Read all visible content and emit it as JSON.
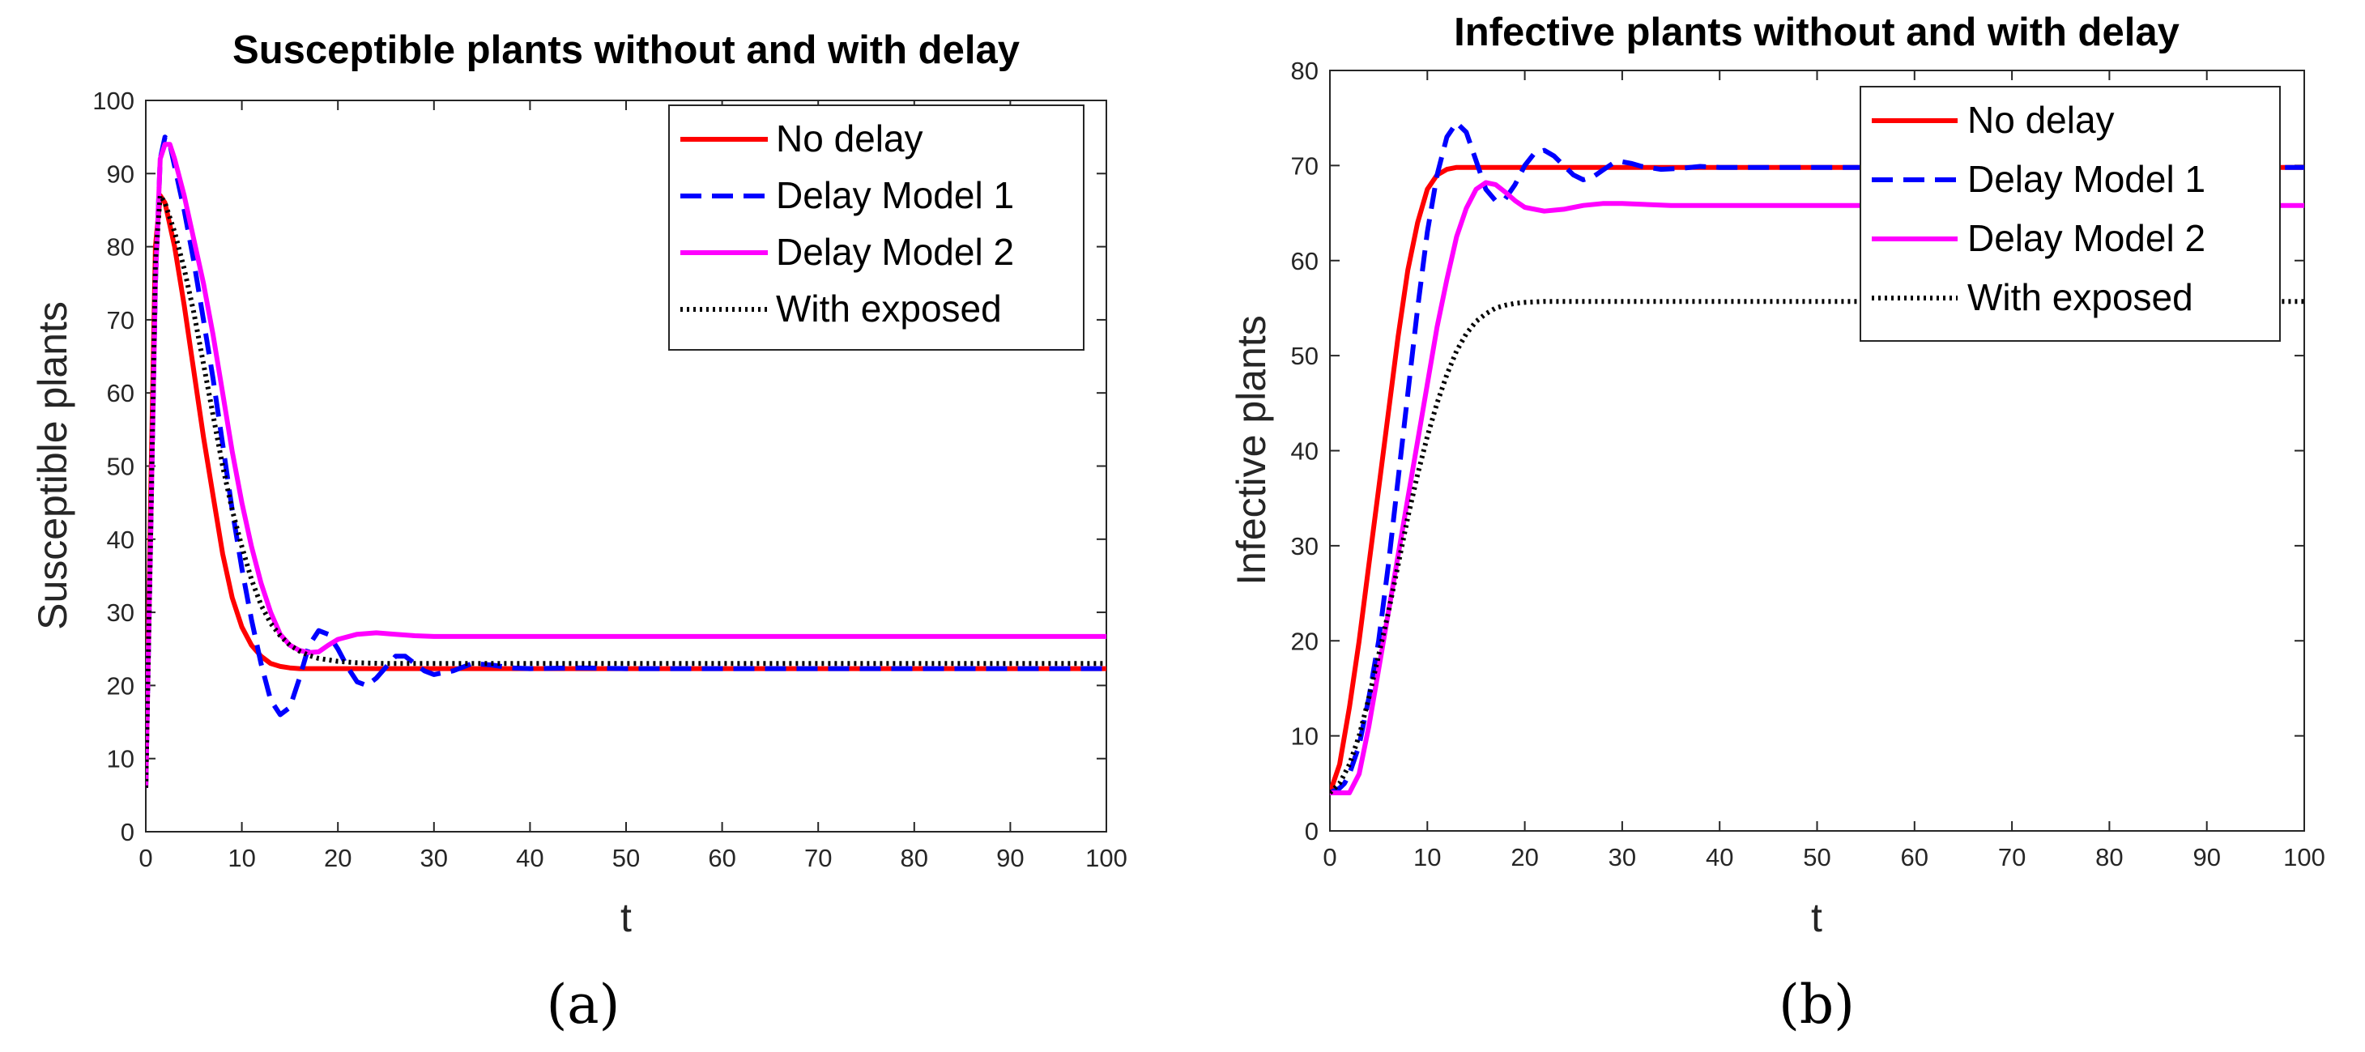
{
  "colors": {
    "no_delay": "#ff0000",
    "delay_model_1": "#0000ff",
    "delay_model_2": "#ff00ff",
    "with_exposed": "#000000",
    "axis": "#262626",
    "text": "#000000"
  },
  "chart_data": [
    {
      "type": "line",
      "panel_label": "(a)",
      "title": "Susceptible plants without and with delay",
      "xlabel": "t",
      "ylabel": "Susceptible plants",
      "xlim": [
        0,
        100
      ],
      "ylim": [
        0,
        100
      ],
      "xticks": [
        0,
        10,
        20,
        30,
        40,
        50,
        60,
        70,
        80,
        90,
        100
      ],
      "yticks": [
        0,
        10,
        20,
        30,
        40,
        50,
        60,
        70,
        80,
        90,
        100
      ],
      "legend_position": "top-right",
      "series": [
        {
          "name": "No delay",
          "style": "solid",
          "color": "#ff0000",
          "x": [
            0,
            0.5,
            1,
            1.5,
            2,
            3,
            4,
            5,
            6,
            7,
            8,
            9,
            10,
            11,
            12,
            13,
            14,
            15,
            16,
            18,
            20,
            25,
            30,
            40,
            50,
            60,
            70,
            80,
            90,
            100
          ],
          "y": [
            6,
            45,
            80,
            87,
            86,
            80,
            72,
            63,
            54,
            46,
            38,
            32,
            28,
            25.5,
            24,
            23,
            22.6,
            22.4,
            22.3,
            22.3,
            22.3,
            22.3,
            22.3,
            22.3,
            22.3,
            22.3,
            22.3,
            22.3,
            22.3,
            22.3
          ]
        },
        {
          "name": "Delay Model 1",
          "style": "dashed",
          "color": "#0000ff",
          "x": [
            0,
            0.5,
            1,
            1.5,
            2,
            2.5,
            3,
            4,
            5,
            6,
            7,
            8,
            9,
            10,
            11,
            12,
            13,
            14,
            15,
            16,
            17,
            18,
            19,
            20,
            21,
            22,
            23,
            24,
            25,
            26,
            27,
            28,
            29,
            30,
            32,
            34,
            36,
            38,
            40,
            45,
            50,
            60,
            70,
            80,
            90,
            100
          ],
          "y": [
            6,
            40,
            75,
            92,
            95,
            94,
            91,
            85,
            78,
            70,
            62,
            53,
            44,
            36,
            29,
            23,
            18,
            16,
            17,
            21,
            25.5,
            27.5,
            27,
            25,
            22.5,
            20.5,
            20,
            21,
            22.5,
            24,
            24,
            23,
            22,
            21.5,
            22,
            23,
            22.8,
            22.4,
            22.3,
            22.4,
            22.3,
            22.3,
            22.3,
            22.3,
            22.3,
            22.3
          ]
        },
        {
          "name": "Delay Model 2",
          "style": "solid",
          "color": "#ff00ff",
          "x": [
            0,
            0.5,
            1,
            1.5,
            2,
            2.5,
            3,
            4,
            5,
            6,
            7,
            8,
            9,
            10,
            11,
            12,
            13,
            14,
            15,
            16,
            17,
            18,
            19,
            20,
            22,
            24,
            26,
            28,
            30,
            35,
            40,
            50,
            60,
            70,
            80,
            90,
            100
          ],
          "y": [
            6,
            40,
            75,
            92,
            94,
            94,
            92,
            87,
            81,
            75,
            68,
            60,
            52,
            45,
            39,
            34,
            30,
            27,
            25.5,
            24.8,
            24.5,
            24.6,
            25.5,
            26.3,
            27,
            27.2,
            27,
            26.8,
            26.7,
            26.7,
            26.7,
            26.7,
            26.7,
            26.7,
            26.7,
            26.7,
            26.7
          ]
        },
        {
          "name": "With exposed",
          "style": "dotted",
          "color": "#000000",
          "x": [
            0,
            0.5,
            1,
            1.5,
            2,
            3,
            4,
            5,
            6,
            7,
            8,
            9,
            10,
            11,
            12,
            13,
            14,
            15,
            16,
            17,
            18,
            20,
            22,
            25,
            30,
            40,
            50,
            60,
            70,
            80,
            90,
            100
          ],
          "y": [
            6,
            40,
            78,
            87,
            86,
            82,
            77,
            71,
            64,
            57,
            50,
            44,
            39,
            34.5,
            31,
            28.5,
            26.8,
            25.5,
            24.7,
            24.1,
            23.7,
            23.3,
            23.1,
            23,
            23,
            23,
            23,
            23,
            23,
            23,
            23,
            23
          ]
        }
      ]
    },
    {
      "type": "line",
      "panel_label": "(b)",
      "title": "Infective plants without and with delay",
      "xlabel": "t",
      "ylabel": "Infective plants",
      "xlim": [
        0,
        100
      ],
      "ylim": [
        0,
        80
      ],
      "xticks": [
        0,
        10,
        20,
        30,
        40,
        50,
        60,
        70,
        80,
        90,
        100
      ],
      "yticks": [
        0,
        10,
        20,
        30,
        40,
        50,
        60,
        70,
        80
      ],
      "legend_position": "top-right",
      "series": [
        {
          "name": "No delay",
          "style": "solid",
          "color": "#ff0000",
          "x": [
            0,
            1,
            2,
            3,
            4,
            5,
            6,
            7,
            8,
            9,
            10,
            11,
            12,
            13,
            14,
            15,
            16,
            18,
            20,
            25,
            30,
            40,
            50,
            60,
            70,
            80,
            90,
            100
          ],
          "y": [
            4,
            7,
            13,
            20,
            28,
            36,
            44,
            52,
            59,
            64,
            67.5,
            69,
            69.6,
            69.8,
            69.8,
            69.8,
            69.8,
            69.8,
            69.8,
            69.8,
            69.8,
            69.8,
            69.8,
            69.8,
            69.8,
            69.8,
            69.8,
            69.8
          ]
        },
        {
          "name": "Delay Model 1",
          "style": "dashed",
          "color": "#0000ff",
          "x": [
            0,
            1,
            1.5,
            2,
            3,
            4,
            5,
            6,
            7,
            8,
            9,
            10,
            11,
            12,
            13,
            14,
            15,
            16,
            17,
            18,
            19,
            20,
            21,
            22,
            23,
            24,
            25,
            26,
            27,
            28,
            29,
            30,
            31,
            32,
            34,
            36,
            38,
            40,
            45,
            50,
            60,
            70,
            80,
            90,
            100
          ],
          "y": [
            4,
            4.5,
            5,
            6,
            9,
            14,
            20,
            28,
            37,
            46,
            55,
            63,
            69,
            73,
            74.5,
            73.5,
            70.5,
            67.5,
            66.3,
            66.5,
            68,
            70,
            71.3,
            71.6,
            71,
            70,
            69,
            68.5,
            68.8,
            69.5,
            70.2,
            70.4,
            70.2,
            69.9,
            69.6,
            69.7,
            69.9,
            69.8,
            69.8,
            69.8,
            69.8,
            69.8,
            69.8,
            69.8,
            69.8
          ]
        },
        {
          "name": "Delay Model 2",
          "style": "solid",
          "color": "#ff00ff",
          "x": [
            0,
            1,
            2,
            3,
            4,
            5,
            6,
            7,
            8,
            9,
            10,
            11,
            12,
            13,
            14,
            15,
            16,
            17,
            18,
            19,
            20,
            22,
            24,
            26,
            28,
            30,
            35,
            40,
            50,
            60,
            70,
            80,
            90,
            100
          ],
          "y": [
            4,
            4,
            4,
            6,
            11,
            17,
            23,
            29,
            35,
            41,
            47,
            53,
            58,
            62.5,
            65.5,
            67.5,
            68.2,
            68,
            67.2,
            66.3,
            65.6,
            65.2,
            65.4,
            65.8,
            66,
            66,
            65.8,
            65.8,
            65.8,
            65.8,
            65.8,
            65.8,
            65.8,
            65.8
          ]
        },
        {
          "name": "With exposed",
          "style": "dotted",
          "color": "#000000",
          "x": [
            0,
            1,
            2,
            3,
            4,
            5,
            6,
            7,
            8,
            9,
            10,
            11,
            12,
            13,
            14,
            15,
            16,
            17,
            18,
            19,
            20,
            22,
            25,
            30,
            40,
            50,
            60,
            70,
            80,
            90,
            100
          ],
          "y": [
            4,
            5,
            7,
            10,
            14,
            18.5,
            23,
            28,
            33,
            37.5,
            41.5,
            45,
            48,
            50.5,
            52.3,
            53.6,
            54.4,
            55,
            55.3,
            55.5,
            55.6,
            55.7,
            55.7,
            55.7,
            55.7,
            55.7,
            55.7,
            55.7,
            55.7,
            55.7,
            55.7
          ]
        }
      ]
    }
  ]
}
